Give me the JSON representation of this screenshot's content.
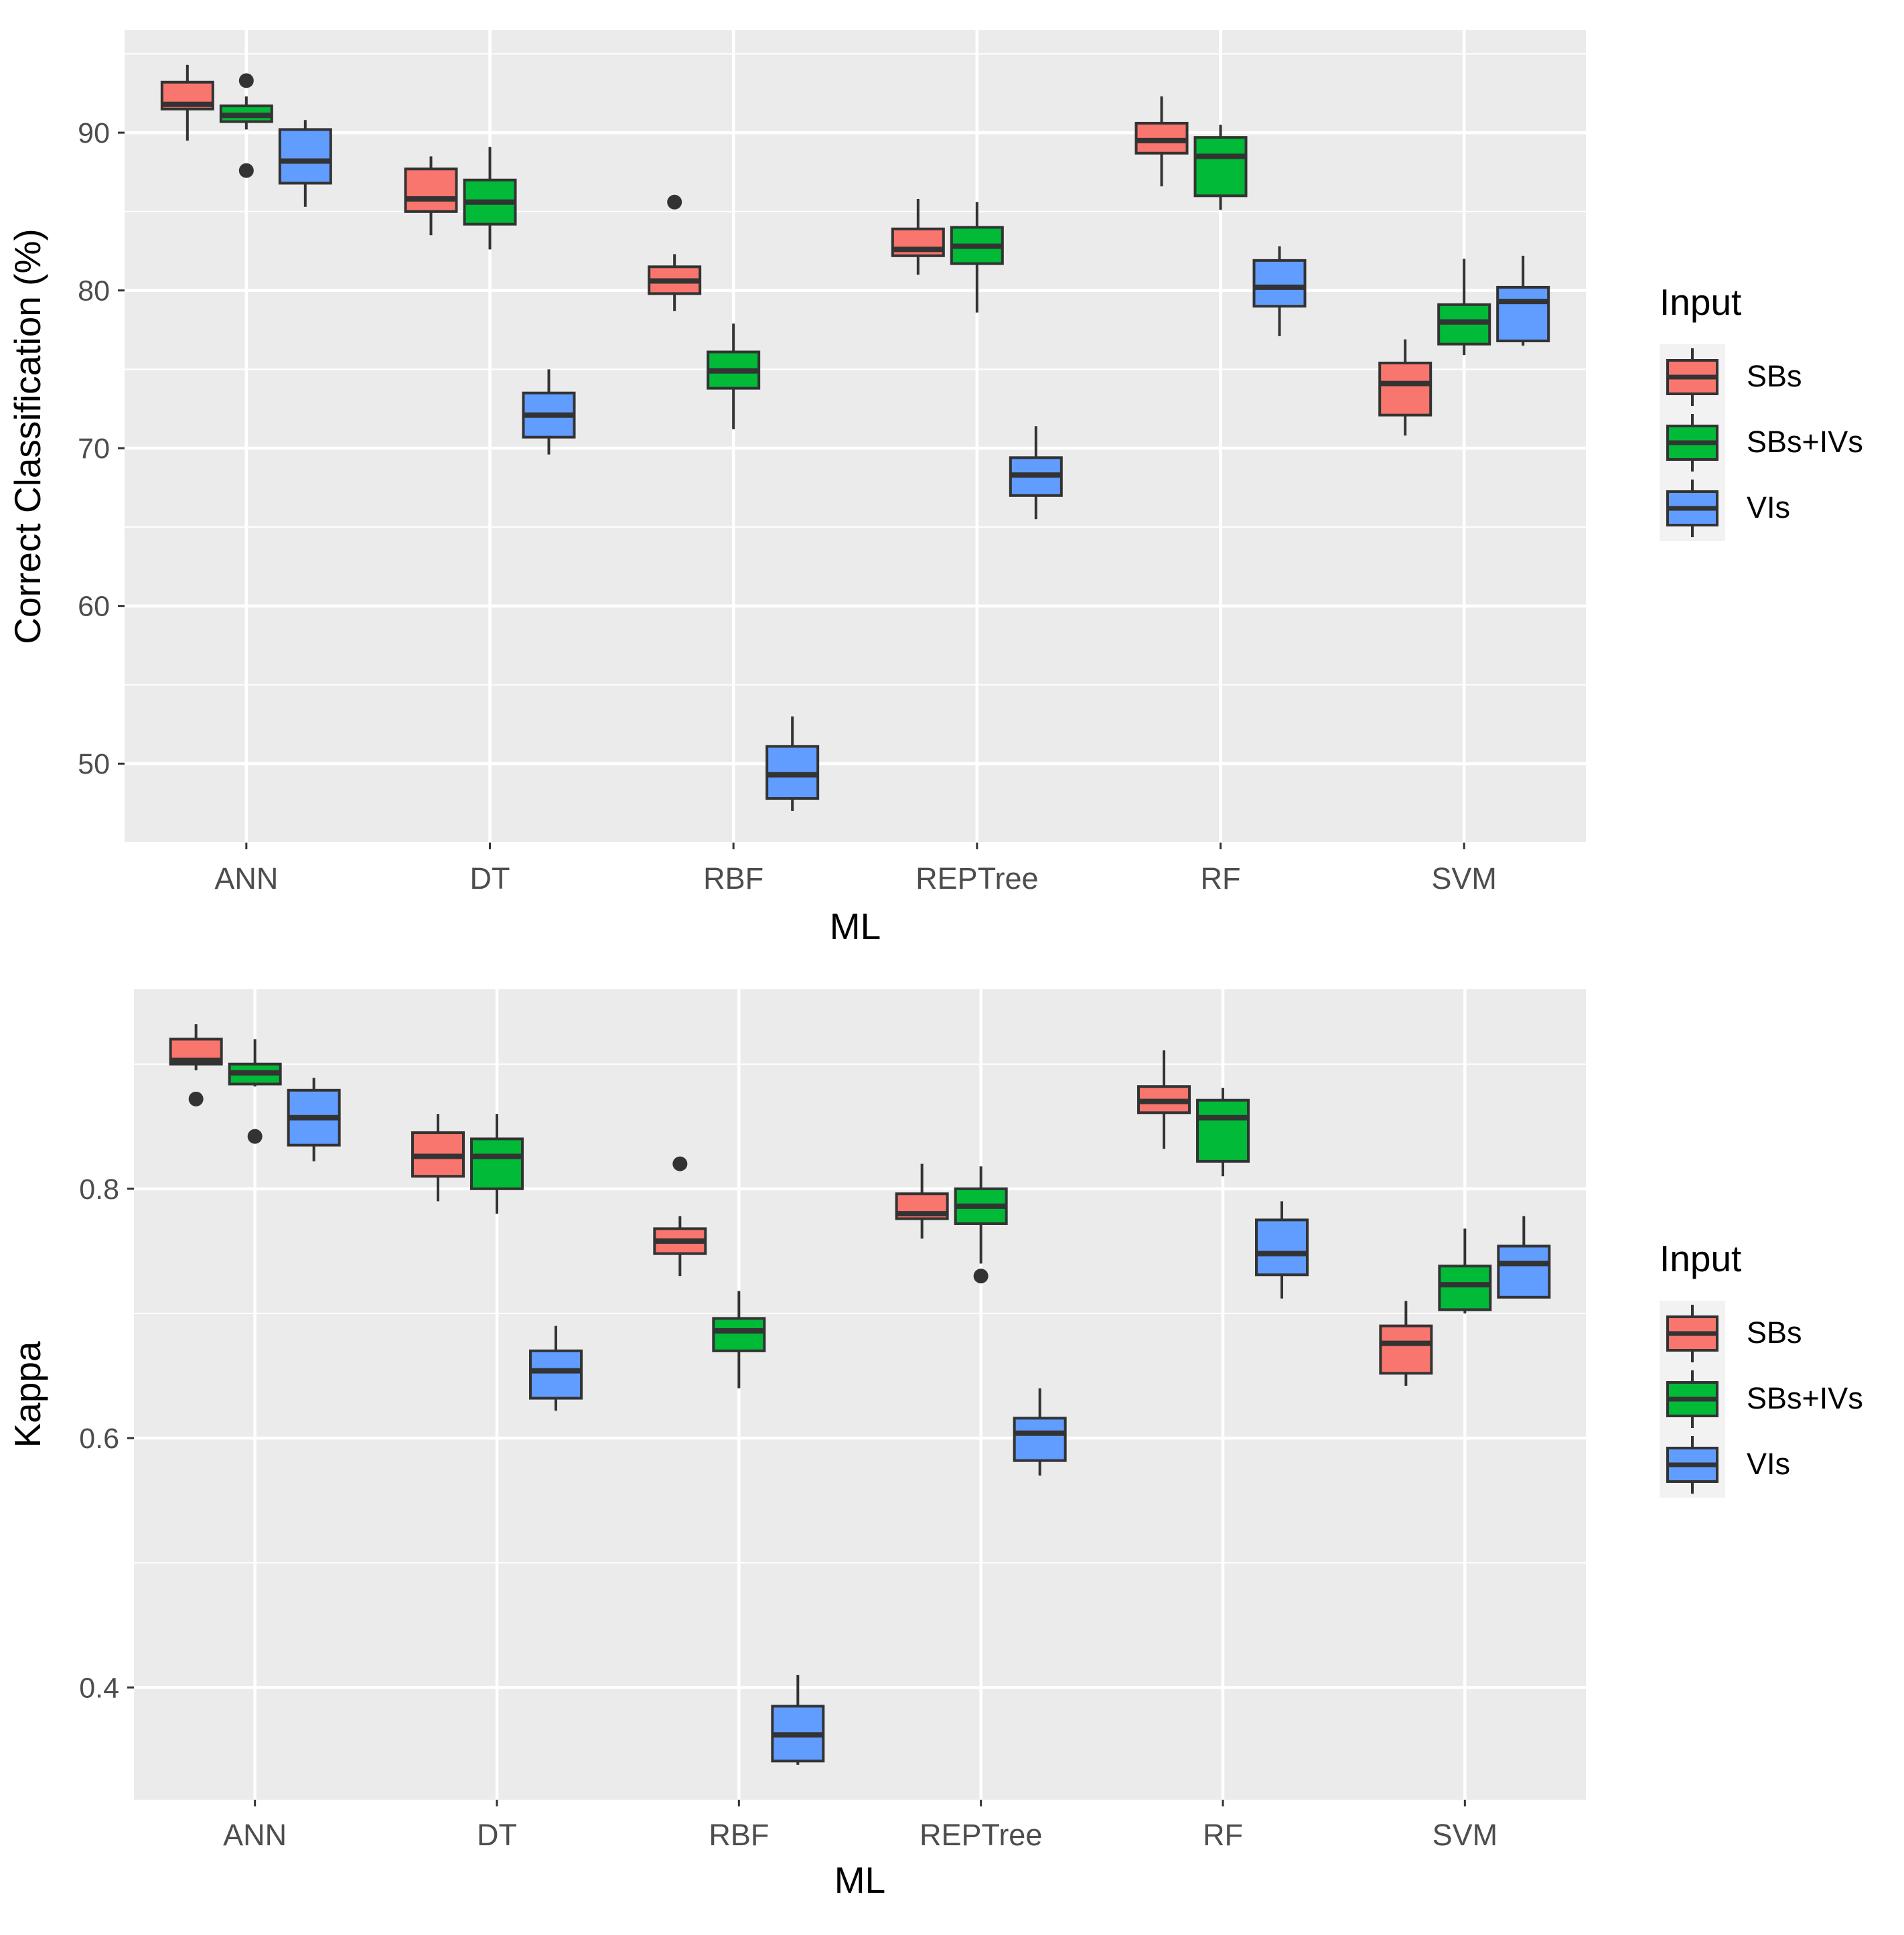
{
  "colors": {
    "SBs": "#F8766D",
    "SBs+IVs": "#00BA38",
    "VIs": "#619CFF"
  },
  "chart_data": [
    {
      "type": "box",
      "title": "",
      "xlabel": "ML",
      "ylabel": "Correct Classification (%)",
      "categories": [
        "ANN",
        "DT",
        "RBF",
        "REPTree",
        "RF",
        "SVM"
      ],
      "ylim": [
        45,
        96.5
      ],
      "yticks": [
        50,
        60,
        70,
        80,
        90
      ],
      "ytick_labels": [
        "50",
        "60",
        "70",
        "80",
        "90"
      ],
      "legend": {
        "title": "Input",
        "entries": [
          "SBs",
          "SBs+IVs",
          "VIs"
        ],
        "position": "right"
      },
      "series": [
        {
          "name": "SBs",
          "boxes": [
            {
              "min": 89.5,
              "q1": 91.5,
              "median": 91.8,
              "q3": 93.2,
              "max": 94.3,
              "outliers": []
            },
            {
              "min": 83.5,
              "q1": 85.0,
              "median": 85.8,
              "q3": 87.7,
              "max": 88.5,
              "outliers": []
            },
            {
              "min": 78.7,
              "q1": 79.8,
              "median": 80.6,
              "q3": 81.5,
              "max": 82.3,
              "outliers": [
                85.6
              ]
            },
            {
              "min": 81.0,
              "q1": 82.2,
              "median": 82.6,
              "q3": 83.9,
              "max": 85.8,
              "outliers": []
            },
            {
              "min": 86.6,
              "q1": 88.7,
              "median": 89.5,
              "q3": 90.6,
              "max": 92.3,
              "outliers": []
            },
            {
              "min": 70.8,
              "q1": 72.1,
              "median": 74.1,
              "q3": 75.4,
              "max": 76.9,
              "outliers": []
            }
          ]
        },
        {
          "name": "SBs+IVs",
          "boxes": [
            {
              "min": 90.2,
              "q1": 90.7,
              "median": 91.1,
              "q3": 91.7,
              "max": 92.3,
              "outliers": [
                93.3,
                87.6
              ]
            },
            {
              "min": 82.6,
              "q1": 84.2,
              "median": 85.6,
              "q3": 87.0,
              "max": 89.1,
              "outliers": []
            },
            {
              "min": 71.2,
              "q1": 73.8,
              "median": 74.9,
              "q3": 76.1,
              "max": 77.9,
              "outliers": []
            },
            {
              "min": 78.6,
              "q1": 81.7,
              "median": 82.8,
              "q3": 84.0,
              "max": 85.6,
              "outliers": []
            },
            {
              "min": 85.1,
              "q1": 86.0,
              "median": 88.5,
              "q3": 89.7,
              "max": 90.5,
              "outliers": []
            },
            {
              "min": 75.9,
              "q1": 76.6,
              "median": 78.0,
              "q3": 79.1,
              "max": 82.0,
              "outliers": []
            }
          ]
        },
        {
          "name": "VIs",
          "boxes": [
            {
              "min": 85.3,
              "q1": 86.8,
              "median": 88.2,
              "q3": 90.2,
              "max": 90.8,
              "outliers": []
            },
            {
              "min": 69.6,
              "q1": 70.7,
              "median": 72.1,
              "q3": 73.5,
              "max": 75.0,
              "outliers": []
            },
            {
              "min": 47.0,
              "q1": 47.8,
              "median": 49.3,
              "q3": 51.1,
              "max": 53.0,
              "outliers": []
            },
            {
              "min": 65.5,
              "q1": 67.0,
              "median": 68.3,
              "q3": 69.4,
              "max": 71.4,
              "outliers": []
            },
            {
              "min": 77.1,
              "q1": 79.0,
              "median": 80.2,
              "q3": 81.9,
              "max": 82.8,
              "outliers": []
            },
            {
              "min": 76.5,
              "q1": 76.8,
              "median": 79.3,
              "q3": 80.2,
              "max": 82.2,
              "outliers": []
            }
          ]
        }
      ]
    },
    {
      "type": "box",
      "title": "",
      "xlabel": "ML",
      "ylabel": "Kappa",
      "categories": [
        "ANN",
        "DT",
        "RBF",
        "REPTree",
        "RF",
        "SVM"
      ],
      "ylim": [
        0.31,
        0.96
      ],
      "yticks": [
        0.4,
        0.6,
        0.8
      ],
      "ytick_labels": [
        "0.4",
        "0.6",
        "0.8"
      ],
      "legend": {
        "title": "Input",
        "entries": [
          "SBs",
          "SBs+IVs",
          "VIs"
        ],
        "position": "right"
      },
      "series": [
        {
          "name": "SBs",
          "boxes": [
            {
              "min": 0.895,
              "q1": 0.9,
              "median": 0.903,
              "q3": 0.92,
              "max": 0.932,
              "outliers": [
                0.872
              ]
            },
            {
              "min": 0.79,
              "q1": 0.81,
              "median": 0.826,
              "q3": 0.845,
              "max": 0.86,
              "outliers": []
            },
            {
              "min": 0.73,
              "q1": 0.748,
              "median": 0.758,
              "q3": 0.768,
              "max": 0.778,
              "outliers": [
                0.82
              ]
            },
            {
              "min": 0.76,
              "q1": 0.776,
              "median": 0.78,
              "q3": 0.796,
              "max": 0.82,
              "outliers": []
            },
            {
              "min": 0.832,
              "q1": 0.861,
              "median": 0.87,
              "q3": 0.882,
              "max": 0.911,
              "outliers": []
            },
            {
              "min": 0.642,
              "q1": 0.652,
              "median": 0.676,
              "q3": 0.69,
              "max": 0.71,
              "outliers": []
            }
          ]
        },
        {
          "name": "SBs+IVs",
          "boxes": [
            {
              "min": 0.882,
              "q1": 0.884,
              "median": 0.893,
              "q3": 0.9,
              "max": 0.92,
              "outliers": [
                0.842
              ]
            },
            {
              "min": 0.78,
              "q1": 0.8,
              "median": 0.826,
              "q3": 0.84,
              "max": 0.86,
              "outliers": []
            },
            {
              "min": 0.64,
              "q1": 0.67,
              "median": 0.686,
              "q3": 0.696,
              "max": 0.718,
              "outliers": []
            },
            {
              "min": 0.74,
              "q1": 0.772,
              "median": 0.786,
              "q3": 0.8,
              "max": 0.818,
              "outliers": [
                0.73
              ]
            },
            {
              "min": 0.81,
              "q1": 0.822,
              "median": 0.857,
              "q3": 0.871,
              "max": 0.881,
              "outliers": []
            },
            {
              "min": 0.7,
              "q1": 0.703,
              "median": 0.723,
              "q3": 0.738,
              "max": 0.768,
              "outliers": []
            }
          ]
        },
        {
          "name": "VIs",
          "boxes": [
            {
              "min": 0.822,
              "q1": 0.835,
              "median": 0.857,
              "q3": 0.879,
              "max": 0.889,
              "outliers": []
            },
            {
              "min": 0.622,
              "q1": 0.632,
              "median": 0.654,
              "q3": 0.67,
              "max": 0.69,
              "outliers": []
            },
            {
              "min": 0.338,
              "q1": 0.341,
              "median": 0.362,
              "q3": 0.385,
              "max": 0.41,
              "outliers": []
            },
            {
              "min": 0.57,
              "q1": 0.582,
              "median": 0.604,
              "q3": 0.616,
              "max": 0.64,
              "outliers": []
            },
            {
              "min": 0.712,
              "q1": 0.731,
              "median": 0.748,
              "q3": 0.775,
              "max": 0.79,
              "outliers": []
            },
            {
              "min": 0.713,
              "q1": 0.713,
              "median": 0.74,
              "q3": 0.754,
              "max": 0.778,
              "outliers": []
            }
          ]
        }
      ]
    }
  ]
}
